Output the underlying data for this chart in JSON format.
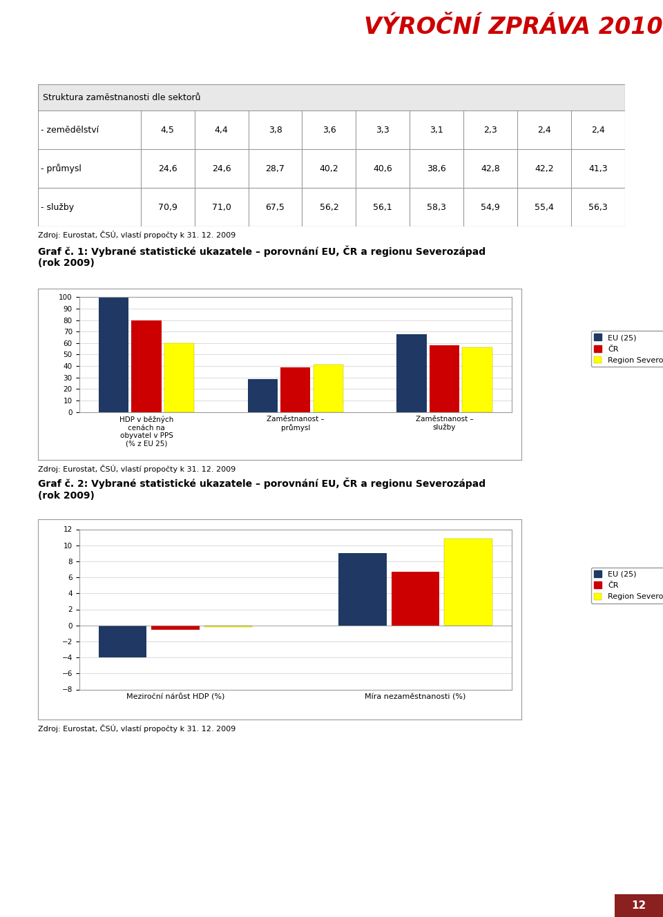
{
  "page_bg": "#ffffff",
  "header_blue": "#1F3864",
  "header_red": "#8B2020",
  "title_text": "VÝROČNÍ ZPRÁVA 2010",
  "title_color": "#CC0000",
  "table_title": "Struktura zaměstnanosti dle sektorů",
  "table_rows": [
    {
      "label": "- zemědělství",
      "values": [
        "4,5",
        "4,4",
        "3,8",
        "3,6",
        "3,3",
        "3,1",
        "2,3",
        "2,4",
        "2,4"
      ]
    },
    {
      "label": "- průmysl",
      "values": [
        "24,6",
        "24,6",
        "28,7",
        "40,2",
        "40,6",
        "38,6",
        "42,8",
        "42,2",
        "41,3"
      ]
    },
    {
      "label": "- služby",
      "values": [
        "70,9",
        "71,0",
        "67,5",
        "56,2",
        "56,1",
        "58,3",
        "54,9",
        "55,4",
        "56,3"
      ]
    }
  ],
  "table_source": "Zdroj: Eurostat, ČSÚ, vlastí propočty k 31. 12. 2009",
  "chart1_title": "Graf č. 1: Vybrané statistické ukazatele – porovnání EU, ČR a regionu Severozápad\n(rok 2009)",
  "chart1_categories": [
    "HDP v běžných\ncenách na\nobyvatel v PPS\n(% z EU 25)",
    "Zaměstnanost –\nprůmysl",
    "Zaměstnanost –\nslužby"
  ],
  "chart1_EU": [
    100,
    28.7,
    67.5
  ],
  "chart1_CR": [
    80,
    38.6,
    58.3
  ],
  "chart1_SZ": [
    60,
    41.3,
    56.3
  ],
  "chart1_ylim": [
    0,
    100
  ],
  "chart1_yticks": [
    0,
    10,
    20,
    30,
    40,
    50,
    60,
    70,
    80,
    90,
    100
  ],
  "chart1_source": "Zdroj: Eurostat, ČSÚ, vlastí propočty k 31. 12. 2009",
  "chart2_title": "Graf č. 2: Vybrané statistické ukazatele – porovnání EU, ČR a regionu Severozápad\n(rok 2009)",
  "chart2_categories": [
    "Meziroční nárůst HDP (%)",
    "Míra nezaměstnanosti (%)"
  ],
  "chart2_EU": [
    -4.0,
    9.0
  ],
  "chart2_CR": [
    -0.5,
    6.7
  ],
  "chart2_SZ": [
    -0.2,
    10.8
  ],
  "chart2_ylim": [
    -8,
    12
  ],
  "chart2_yticks": [
    -8,
    -6,
    -4,
    -2,
    0,
    2,
    4,
    6,
    8,
    10,
    12
  ],
  "chart2_source": "Zdroj: Eurostat, ČSÚ, vlastí propočty k 31. 12. 2009",
  "color_EU": "#1F3864",
  "color_CR": "#CC0000",
  "color_SZ": "#FFFF00",
  "legend_labels": [
    "EU (25)",
    "ČR",
    "Region Severozápad"
  ],
  "footer_blue": "#1F3864",
  "footer_red": "#8B2020",
  "footer_page": "12"
}
